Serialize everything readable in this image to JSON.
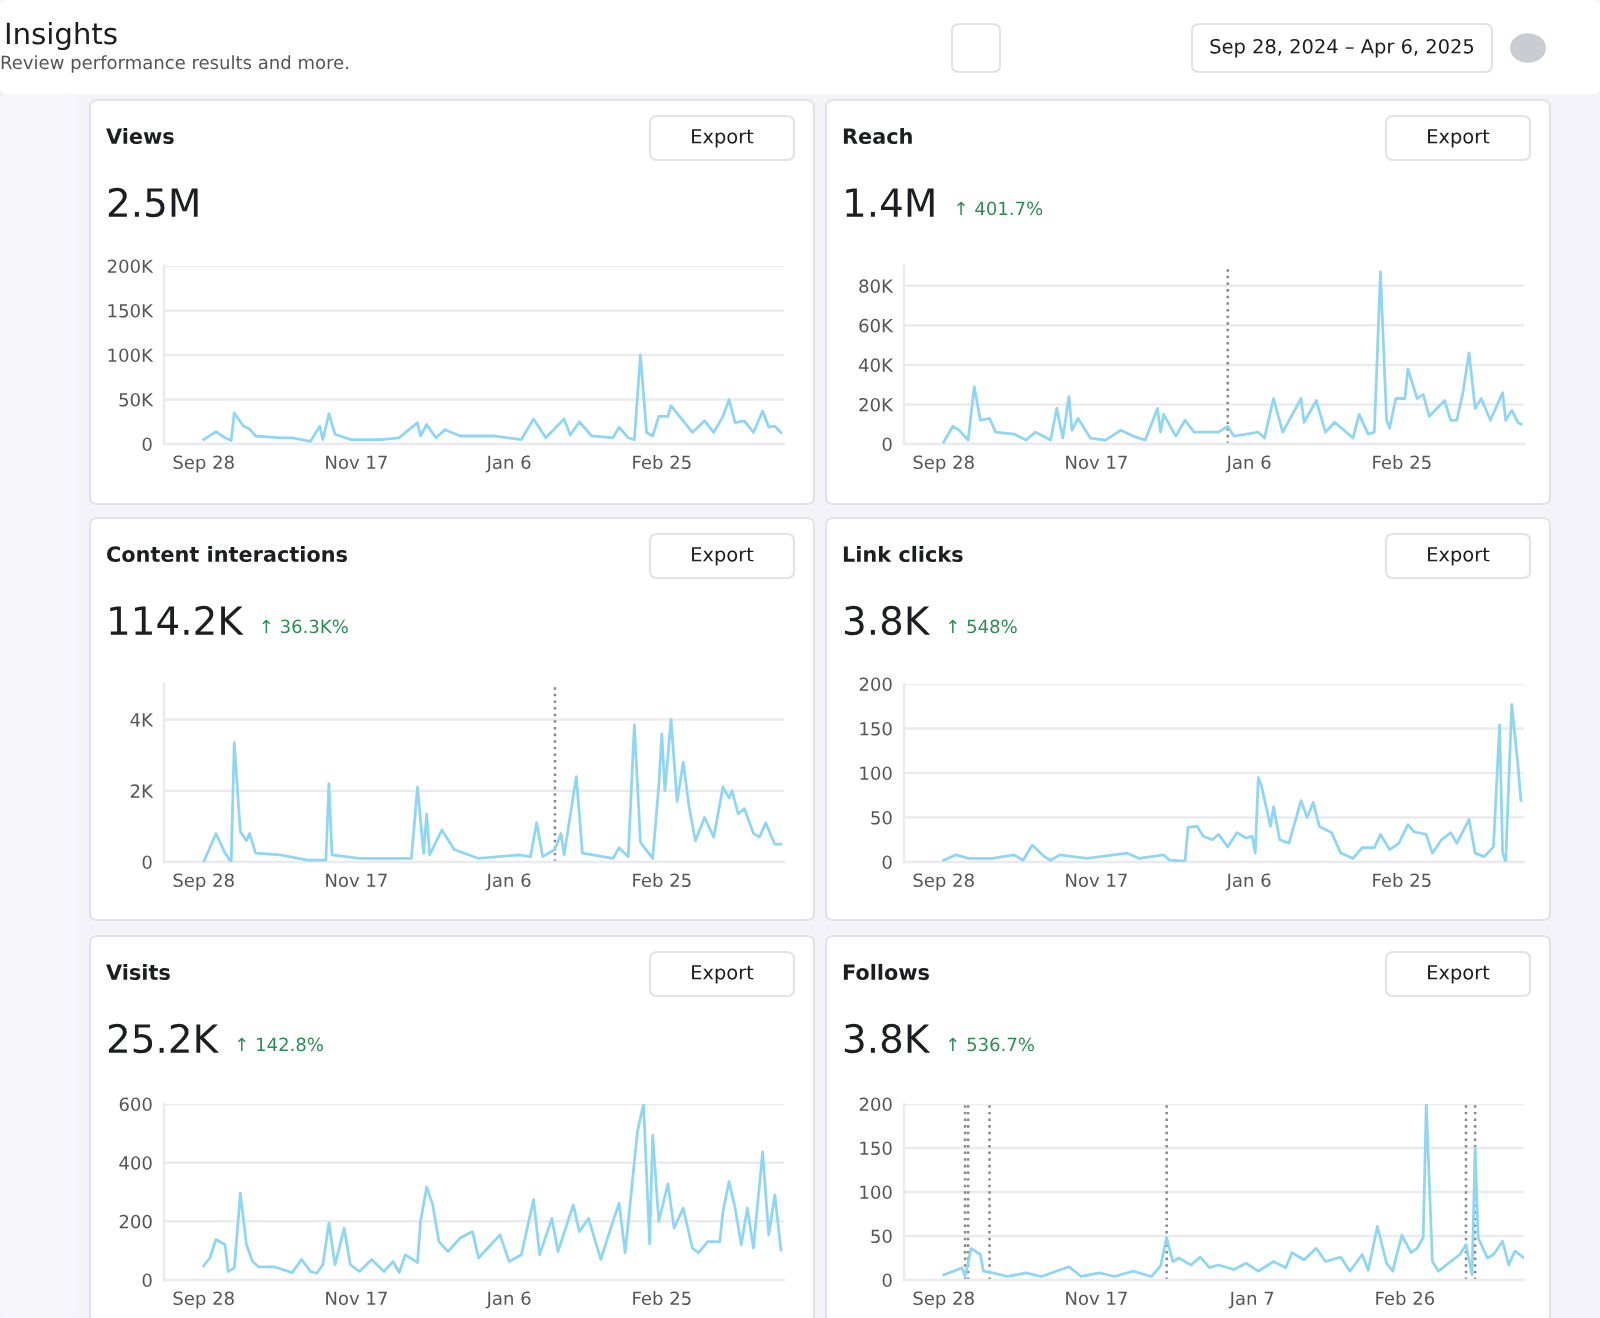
{
  "chart_data": [
    {
      "type": "other",
      "title": "Insights",
      "subtitle": "Review performance results and more.",
      "annotations": [
        "Sep 28, 2024 – Apr 6, 2025"
      ]
    },
    {
      "type": "line",
      "title": "Views",
      "subtitle": "2.5M",
      "annotations": [
        "Export"
      ],
      "grid": "y",
      "xlim": [
        "2024-09-15",
        "2025-04-06"
      ],
      "xticks": [
        {
          "value": "2024-09-28",
          "label": "Sep 28"
        },
        {
          "value": "2024-11-17",
          "label": "Nov 17"
        },
        {
          "value": "2025-01-06",
          "label": "Jan 6"
        },
        {
          "value": "2025-02-25",
          "label": "Feb 25"
        }
      ],
      "ylim": [
        0,
        200000
      ],
      "yticks": [
        0,
        {
          "value": 50000,
          "label": "50K"
        },
        {
          "value": 100000,
          "label": "100K"
        },
        {
          "value": 150000,
          "label": "150K"
        },
        {
          "value": 200000,
          "label": "200K"
        }
      ],
      "x": [
        "2024-09-28",
        "2024-10-02",
        "2024-10-05",
        "2024-10-07",
        "2024-10-08",
        "2024-10-11",
        "2024-10-13",
        "2024-10-15",
        "2024-10-23",
        "2024-10-27",
        "2024-11-02",
        "2024-11-05",
        "2024-11-06",
        "2024-11-08",
        "2024-11-10",
        "2024-11-15",
        "2024-11-25",
        "2024-12-01",
        "2024-12-07",
        "2024-12-08",
        "2024-12-10",
        "2024-12-13",
        "2024-12-16",
        "2024-12-21",
        "2025-01-01",
        "2025-01-10",
        "2025-01-14",
        "2025-01-18",
        "2025-01-24",
        "2025-01-26",
        "2025-01-29",
        "2025-02-02",
        "2025-02-09",
        "2025-02-11",
        "2025-02-14",
        "2025-02-16",
        "2025-02-18",
        "2025-02-20",
        "2025-02-22",
        "2025-02-24",
        "2025-02-27",
        "2025-02-28",
        "2025-03-04",
        "2025-03-07",
        "2025-03-11",
        "2025-03-14",
        "2025-03-17",
        "2025-03-19",
        "2025-03-21",
        "2025-03-24",
        "2025-03-27",
        "2025-03-30",
        "2025-04-01",
        "2025-04-03",
        "2025-04-05"
      ],
      "series": [
        {
          "color": "#8fd6f5",
          "values": [
            5000,
            14000,
            7000,
            4000,
            35000,
            20000,
            17000,
            9000,
            7000,
            7000,
            3000,
            20000,
            5000,
            34000,
            11000,
            5000,
            5000,
            7000,
            24000,
            9000,
            22000,
            7000,
            16000,
            9000,
            9000,
            5000,
            28000,
            7000,
            28000,
            10000,
            25000,
            9000,
            7000,
            19000,
            7000,
            5000,
            100000,
            13000,
            9000,
            31000,
            31000,
            43000,
            26000,
            13000,
            26000,
            13000,
            31000,
            50000,
            24000,
            26000,
            13000,
            37000,
            19000,
            20000,
            13000
          ]
        }
      ]
    },
    {
      "type": "line",
      "title": "Reach",
      "subtitle": "1.4M",
      "annotations": [
        "↑ 401.7%",
        "Export"
      ],
      "grid": "y",
      "xlim": [
        "2024-09-15",
        "2025-04-06"
      ],
      "xticks": [
        {
          "value": "2024-09-28",
          "label": "Sep 28"
        },
        {
          "value": "2024-11-17",
          "label": "Nov 17"
        },
        {
          "value": "2025-01-06",
          "label": "Jan 6"
        },
        {
          "value": "2025-02-25",
          "label": "Feb 25"
        }
      ],
      "ylim": [
        0,
        90000
      ],
      "yticks": [
        0,
        {
          "value": 20000,
          "label": "20K"
        },
        {
          "value": 40000,
          "label": "40K"
        },
        {
          "value": 60000,
          "label": "60K"
        },
        {
          "value": 80000,
          "label": "80K"
        }
      ],
      "ref_lines": [
        {
          "axis": "x",
          "value": "2024-12-30",
          "color": "#888888",
          "line_style": "dotted"
        }
      ],
      "x": [
        "2024-09-28",
        "2024-10-01",
        "2024-10-03",
        "2024-10-06",
        "2024-10-08",
        "2024-10-10",
        "2024-10-13",
        "2024-10-15",
        "2024-10-21",
        "2024-10-25",
        "2024-10-28",
        "2024-11-02",
        "2024-11-04",
        "2024-11-06",
        "2024-11-08",
        "2024-11-09",
        "2024-11-11",
        "2024-11-15",
        "2024-11-20",
        "2024-11-25",
        "2024-11-29",
        "2024-12-03",
        "2024-12-07",
        "2024-12-08",
        "2024-12-09",
        "2024-12-13",
        "2024-12-16",
        "2024-12-19",
        "2024-12-27",
        "2024-12-30",
        "2025-01-01",
        "2025-01-09",
        "2025-01-11",
        "2025-01-14",
        "2025-01-17",
        "2025-01-23",
        "2025-01-24",
        "2025-01-28",
        "2025-01-31",
        "2025-02-03",
        "2025-02-09",
        "2025-02-11",
        "2025-02-14",
        "2025-02-16",
        "2025-02-18",
        "2025-02-20",
        "2025-02-21",
        "2025-02-23",
        "2025-02-26",
        "2025-02-27",
        "2025-03-02",
        "2025-03-04",
        "2025-03-06",
        "2025-03-11",
        "2025-03-13",
        "2025-03-15",
        "2025-03-17",
        "2025-03-19",
        "2025-03-21",
        "2025-03-23",
        "2025-03-26",
        "2025-03-30",
        "2025-03-31",
        "2025-04-02",
        "2025-04-04",
        "2025-04-05"
      ],
      "series": [
        {
          "color": "#8fd6f5",
          "values": [
            1000,
            9000,
            7000,
            2000,
            29000,
            12000,
            13000,
            6000,
            5000,
            2000,
            6000,
            2000,
            18000,
            3000,
            24000,
            7000,
            13000,
            3000,
            2000,
            7000,
            4000,
            2000,
            18000,
            6000,
            15000,
            4000,
            12000,
            6000,
            6000,
            9000,
            4000,
            6000,
            3000,
            23000,
            6000,
            23000,
            11000,
            22000,
            6000,
            11000,
            3000,
            15000,
            5000,
            6000,
            87000,
            12000,
            8000,
            23000,
            23000,
            38000,
            23000,
            25000,
            14000,
            22000,
            12000,
            12000,
            26000,
            46000,
            18000,
            23000,
            12000,
            26000,
            12000,
            17000,
            11000,
            10000
          ]
        }
      ]
    },
    {
      "type": "line",
      "title": "Content interactions",
      "subtitle": "114.2K",
      "annotations": [
        "↑ 36.3K%",
        "Export"
      ],
      "grid": "y",
      "xlim": [
        "2024-09-15",
        "2025-04-06"
      ],
      "xticks": [
        {
          "value": "2024-09-28",
          "label": "Sep 28"
        },
        {
          "value": "2024-11-17",
          "label": "Nov 17"
        },
        {
          "value": "2025-01-06",
          "label": "Jan 6"
        },
        {
          "value": "2025-02-25",
          "label": "Feb 25"
        }
      ],
      "ylim": [
        0,
        5000
      ],
      "yticks": [
        0,
        {
          "value": 2000,
          "label": "2K"
        },
        {
          "value": 4000,
          "label": "4K"
        }
      ],
      "ref_lines": [
        {
          "axis": "x",
          "value": "2025-01-21",
          "color": "#888888",
          "line_style": "dotted"
        }
      ],
      "x": [
        "2024-09-28",
        "2024-10-02",
        "2024-10-05",
        "2024-10-07",
        "2024-10-08",
        "2024-10-10",
        "2024-10-12",
        "2024-10-13",
        "2024-10-15",
        "2024-10-23",
        "2024-11-01",
        "2024-11-07",
        "2024-11-08",
        "2024-11-09",
        "2024-11-18",
        "2024-11-29",
        "2024-12-05",
        "2024-12-07",
        "2024-12-09",
        "2024-12-10",
        "2024-12-11",
        "2024-12-15",
        "2024-12-19",
        "2024-12-27",
        "2025-01-09",
        "2025-01-13",
        "2025-01-15",
        "2025-01-17",
        "2025-01-21",
        "2025-01-23",
        "2025-01-24",
        "2025-01-28",
        "2025-01-30",
        "2025-02-09",
        "2025-02-11",
        "2025-02-14",
        "2025-02-16",
        "2025-02-18",
        "2025-02-22",
        "2025-02-24",
        "2025-02-25",
        "2025-02-26",
        "2025-02-28",
        "2025-03-02",
        "2025-03-04",
        "2025-03-06",
        "2025-03-08",
        "2025-03-11",
        "2025-03-14",
        "2025-03-17",
        "2025-03-19",
        "2025-03-20",
        "2025-03-22",
        "2025-03-24",
        "2025-03-27",
        "2025-03-29",
        "2025-03-31",
        "2025-04-03",
        "2025-04-05"
      ],
      "series": [
        {
          "color": "#8fd6f5",
          "values": [
            0,
            800,
            250,
            0,
            3350,
            850,
            600,
            800,
            250,
            200,
            50,
            50,
            2200,
            200,
            100,
            100,
            100,
            2100,
            250,
            1350,
            200,
            900,
            350,
            100,
            200,
            150,
            1100,
            150,
            350,
            800,
            200,
            2400,
            250,
            100,
            400,
            150,
            3850,
            550,
            100,
            2150,
            3600,
            2000,
            4000,
            1700,
            2800,
            1500,
            600,
            1250,
            700,
            2100,
            1800,
            2000,
            1350,
            1500,
            800,
            700,
            1100,
            500,
            500
          ]
        }
      ]
    },
    {
      "type": "line",
      "title": "Link clicks",
      "subtitle": "3.8K",
      "annotations": [
        "↑ 548%",
        "Export"
      ],
      "grid": "y",
      "xlim": [
        "2024-09-15",
        "2025-04-06"
      ],
      "xticks": [
        {
          "value": "2024-09-28",
          "label": "Sep 28"
        },
        {
          "value": "2024-11-17",
          "label": "Nov 17"
        },
        {
          "value": "2025-01-06",
          "label": "Jan 6"
        },
        {
          "value": "2025-02-25",
          "label": "Feb 25"
        }
      ],
      "ylim": [
        0,
        200
      ],
      "yticks": [
        0,
        50,
        100,
        150,
        200
      ],
      "x": [
        "2024-09-28",
        "2024-10-02",
        "2024-10-06",
        "2024-10-14",
        "2024-10-21",
        "2024-10-24",
        "2024-10-27",
        "2024-10-31",
        "2024-11-02",
        "2024-11-05",
        "2024-11-14",
        "2024-11-27",
        "2024-12-01",
        "2024-12-09",
        "2024-12-11",
        "2024-12-16",
        "2024-12-17",
        "2024-12-20",
        "2024-12-22",
        "2024-12-25",
        "2024-12-27",
        "2024-12-30",
        "2025-01-02",
        "2025-01-05",
        "2025-01-07",
        "2025-01-08",
        "2025-01-09",
        "2025-01-10",
        "2025-01-13",
        "2025-01-14",
        "2025-01-16",
        "2025-01-19",
        "2025-01-23",
        "2025-01-25",
        "2025-01-27",
        "2025-01-29",
        "2025-02-02",
        "2025-02-05",
        "2025-02-09",
        "2025-02-12",
        "2025-02-16",
        "2025-02-18",
        "2025-02-21",
        "2025-02-24",
        "2025-02-27",
        "2025-03-01",
        "2025-03-05",
        "2025-03-07",
        "2025-03-10",
        "2025-03-13",
        "2025-03-15",
        "2025-03-19",
        "2025-03-21",
        "2025-03-24",
        "2025-03-27",
        "2025-03-29",
        "2025-03-30",
        "2025-03-31",
        "2025-04-02",
        "2025-04-04",
        "2025-04-05"
      ],
      "series": [
        {
          "color": "#8fd6f5",
          "values": [
            2,
            8,
            4,
            4,
            8,
            2,
            19,
            6,
            2,
            8,
            4,
            10,
            4,
            8,
            2,
            1,
            39,
            40,
            29,
            25,
            31,
            17,
            33,
            27,
            29,
            10,
            95,
            86,
            40,
            62,
            25,
            21,
            69,
            50,
            67,
            40,
            33,
            10,
            4,
            16,
            16,
            31,
            14,
            21,
            42,
            34,
            31,
            10,
            25,
            33,
            21,
            48,
            10,
            6,
            17,
            154,
            10,
            0,
            177,
            109,
            69
          ]
        }
      ]
    },
    {
      "type": "line",
      "title": "Visits",
      "subtitle": "25.2K",
      "annotations": [
        "↑ 142.8%",
        "Export"
      ],
      "grid": "y",
      "xlim": [
        "2024-09-15",
        "2025-04-06"
      ],
      "xticks": [
        {
          "value": "2024-09-28",
          "label": "Sep 28"
        },
        {
          "value": "2024-11-17",
          "label": "Nov 17"
        },
        {
          "value": "2025-01-06",
          "label": "Jan 6"
        },
        {
          "value": "2025-02-25",
          "label": "Feb 25"
        }
      ],
      "ylim": [
        0,
        600
      ],
      "yticks": [
        0,
        200,
        400,
        600
      ],
      "x": [
        "2024-09-28",
        "2024-09-30",
        "2024-10-02",
        "2024-10-05",
        "2024-10-06",
        "2024-10-08",
        "2024-10-09",
        "2024-10-10",
        "2024-10-12",
        "2024-10-14",
        "2024-10-16",
        "2024-10-21",
        "2024-10-27",
        "2024-10-30",
        "2024-11-02",
        "2024-11-04",
        "2024-11-06",
        "2024-11-08",
        "2024-11-10",
        "2024-11-13",
        "2024-11-15",
        "2024-11-18",
        "2024-11-22",
        "2024-11-26",
        "2024-11-29",
        "2024-12-01",
        "2024-12-03",
        "2024-12-07",
        "2024-12-08",
        "2024-12-10",
        "2024-12-12",
        "2024-12-14",
        "2024-12-17",
        "2024-12-21",
        "2024-12-25",
        "2024-12-27",
        "2024-12-30",
        "2025-01-03",
        "2025-01-06",
        "2025-01-10",
        "2025-01-14",
        "2025-01-16",
        "2025-01-20",
        "2025-01-22",
        "2025-01-27",
        "2025-01-29",
        "2025-02-01",
        "2025-02-05",
        "2025-02-09",
        "2025-02-11",
        "2025-02-13",
        "2025-02-17",
        "2025-02-19",
        "2025-02-21",
        "2025-02-22",
        "2025-02-24",
        "2025-02-27",
        "2025-03-01",
        "2025-03-04",
        "2025-03-07",
        "2025-03-09",
        "2025-03-12",
        "2025-03-16",
        "2025-03-17",
        "2025-03-19",
        "2025-03-21",
        "2025-03-23",
        "2025-03-25",
        "2025-03-27",
        "2025-03-30",
        "2025-04-01",
        "2025-04-03",
        "2025-04-05"
      ],
      "series": [
        {
          "color": "#8fd6f5",
          "values": [
            48,
            75,
            138,
            120,
            29,
            41,
            165,
            296,
            120,
            63,
            45,
            45,
            25,
            70,
            29,
            23,
            52,
            195,
            52,
            177,
            52,
            29,
            70,
            29,
            63,
            25,
            86,
            59,
            200,
            317,
            256,
            131,
            97,
            143,
            165,
            75,
            109,
            154,
            63,
            86,
            274,
            86,
            210,
            97,
            256,
            165,
            210,
            70,
            200,
            262,
            93,
            505,
            600,
            124,
            493,
            200,
            328,
            177,
            245,
            109,
            93,
            131,
            131,
            233,
            335,
            245,
            120,
            245,
            109,
            437,
            154,
            290,
            102
          ]
        }
      ]
    },
    {
      "type": "line",
      "title": "Follows",
      "subtitle": "3.8K",
      "annotations": [
        "↑ 536.7%",
        "Export"
      ],
      "grid": "y",
      "xlim": [
        "2024-09-15",
        "2025-04-06"
      ],
      "xticks": [
        {
          "value": "2024-09-28",
          "label": "Sep 28"
        },
        {
          "value": "2024-11-17",
          "label": "Nov 17"
        },
        {
          "value": "2025-01-07",
          "label": "Jan 7"
        },
        {
          "value": "2025-02-26",
          "label": "Feb 26"
        }
      ],
      "ylim": [
        0,
        200
      ],
      "yticks": [
        0,
        50,
        100,
        150,
        200
      ],
      "ref_lines": [
        {
          "axis": "x",
          "value": "2024-10-05",
          "color": "#888888",
          "line_style": "dotted"
        },
        {
          "axis": "x",
          "value": "2024-10-06",
          "color": "#888888",
          "line_style": "dotted"
        },
        {
          "axis": "x",
          "value": "2024-10-13",
          "color": "#888888",
          "line_style": "dotted"
        },
        {
          "axis": "x",
          "value": "2024-12-10",
          "color": "#888888",
          "line_style": "dotted"
        },
        {
          "axis": "x",
          "value": "2025-03-18",
          "color": "#888888",
          "line_style": "dotted"
        },
        {
          "axis": "x",
          "value": "2025-03-21",
          "color": "#888888",
          "line_style": "dotted"
        }
      ],
      "x": [
        "2024-09-28",
        "2024-10-02",
        "2024-10-04",
        "2024-10-05",
        "2024-10-07",
        "2024-10-10",
        "2024-10-11",
        "2024-10-14",
        "2024-10-19",
        "2024-10-25",
        "2024-10-30",
        "2024-11-08",
        "2024-11-12",
        "2024-11-18",
        "2024-11-23",
        "2024-11-29",
        "2024-12-05",
        "2024-12-08",
        "2024-12-10",
        "2024-12-12",
        "2024-12-14",
        "2024-12-18",
        "2024-12-21",
        "2024-12-24",
        "2024-12-27",
        "2025-01-01",
        "2025-01-05",
        "2025-01-09",
        "2025-01-14",
        "2025-01-18",
        "2025-01-20",
        "2025-01-24",
        "2025-01-28",
        "2025-01-31",
        "2025-02-05",
        "2025-02-08",
        "2025-02-12",
        "2025-02-14",
        "2025-02-17",
        "2025-02-20",
        "2025-02-22",
        "2025-02-25",
        "2025-02-28",
        "2025-03-02",
        "2025-03-04",
        "2025-03-05",
        "2025-03-07",
        "2025-03-09",
        "2025-03-13",
        "2025-03-16",
        "2025-03-18",
        "2025-03-20",
        "2025-03-21",
        "2025-03-22",
        "2025-03-25",
        "2025-03-27",
        "2025-03-30",
        "2025-04-01",
        "2025-04-03",
        "2025-04-06"
      ],
      "series": [
        {
          "color": "#8fd6f5",
          "values": [
            6,
            11,
            14,
            4,
            36,
            29,
            10,
            8,
            4,
            8,
            4,
            15,
            4,
            8,
            4,
            10,
            4,
            16,
            48,
            21,
            25,
            17,
            26,
            14,
            17,
            12,
            19,
            10,
            21,
            14,
            31,
            23,
            36,
            21,
            26,
            10,
            29,
            11,
            61,
            19,
            10,
            51,
            31,
            36,
            48,
            200,
            21,
            10,
            21,
            29,
            40,
            6,
            150,
            48,
            25,
            29,
            44,
            17,
            33,
            25
          ]
        }
      ]
    }
  ]
}
